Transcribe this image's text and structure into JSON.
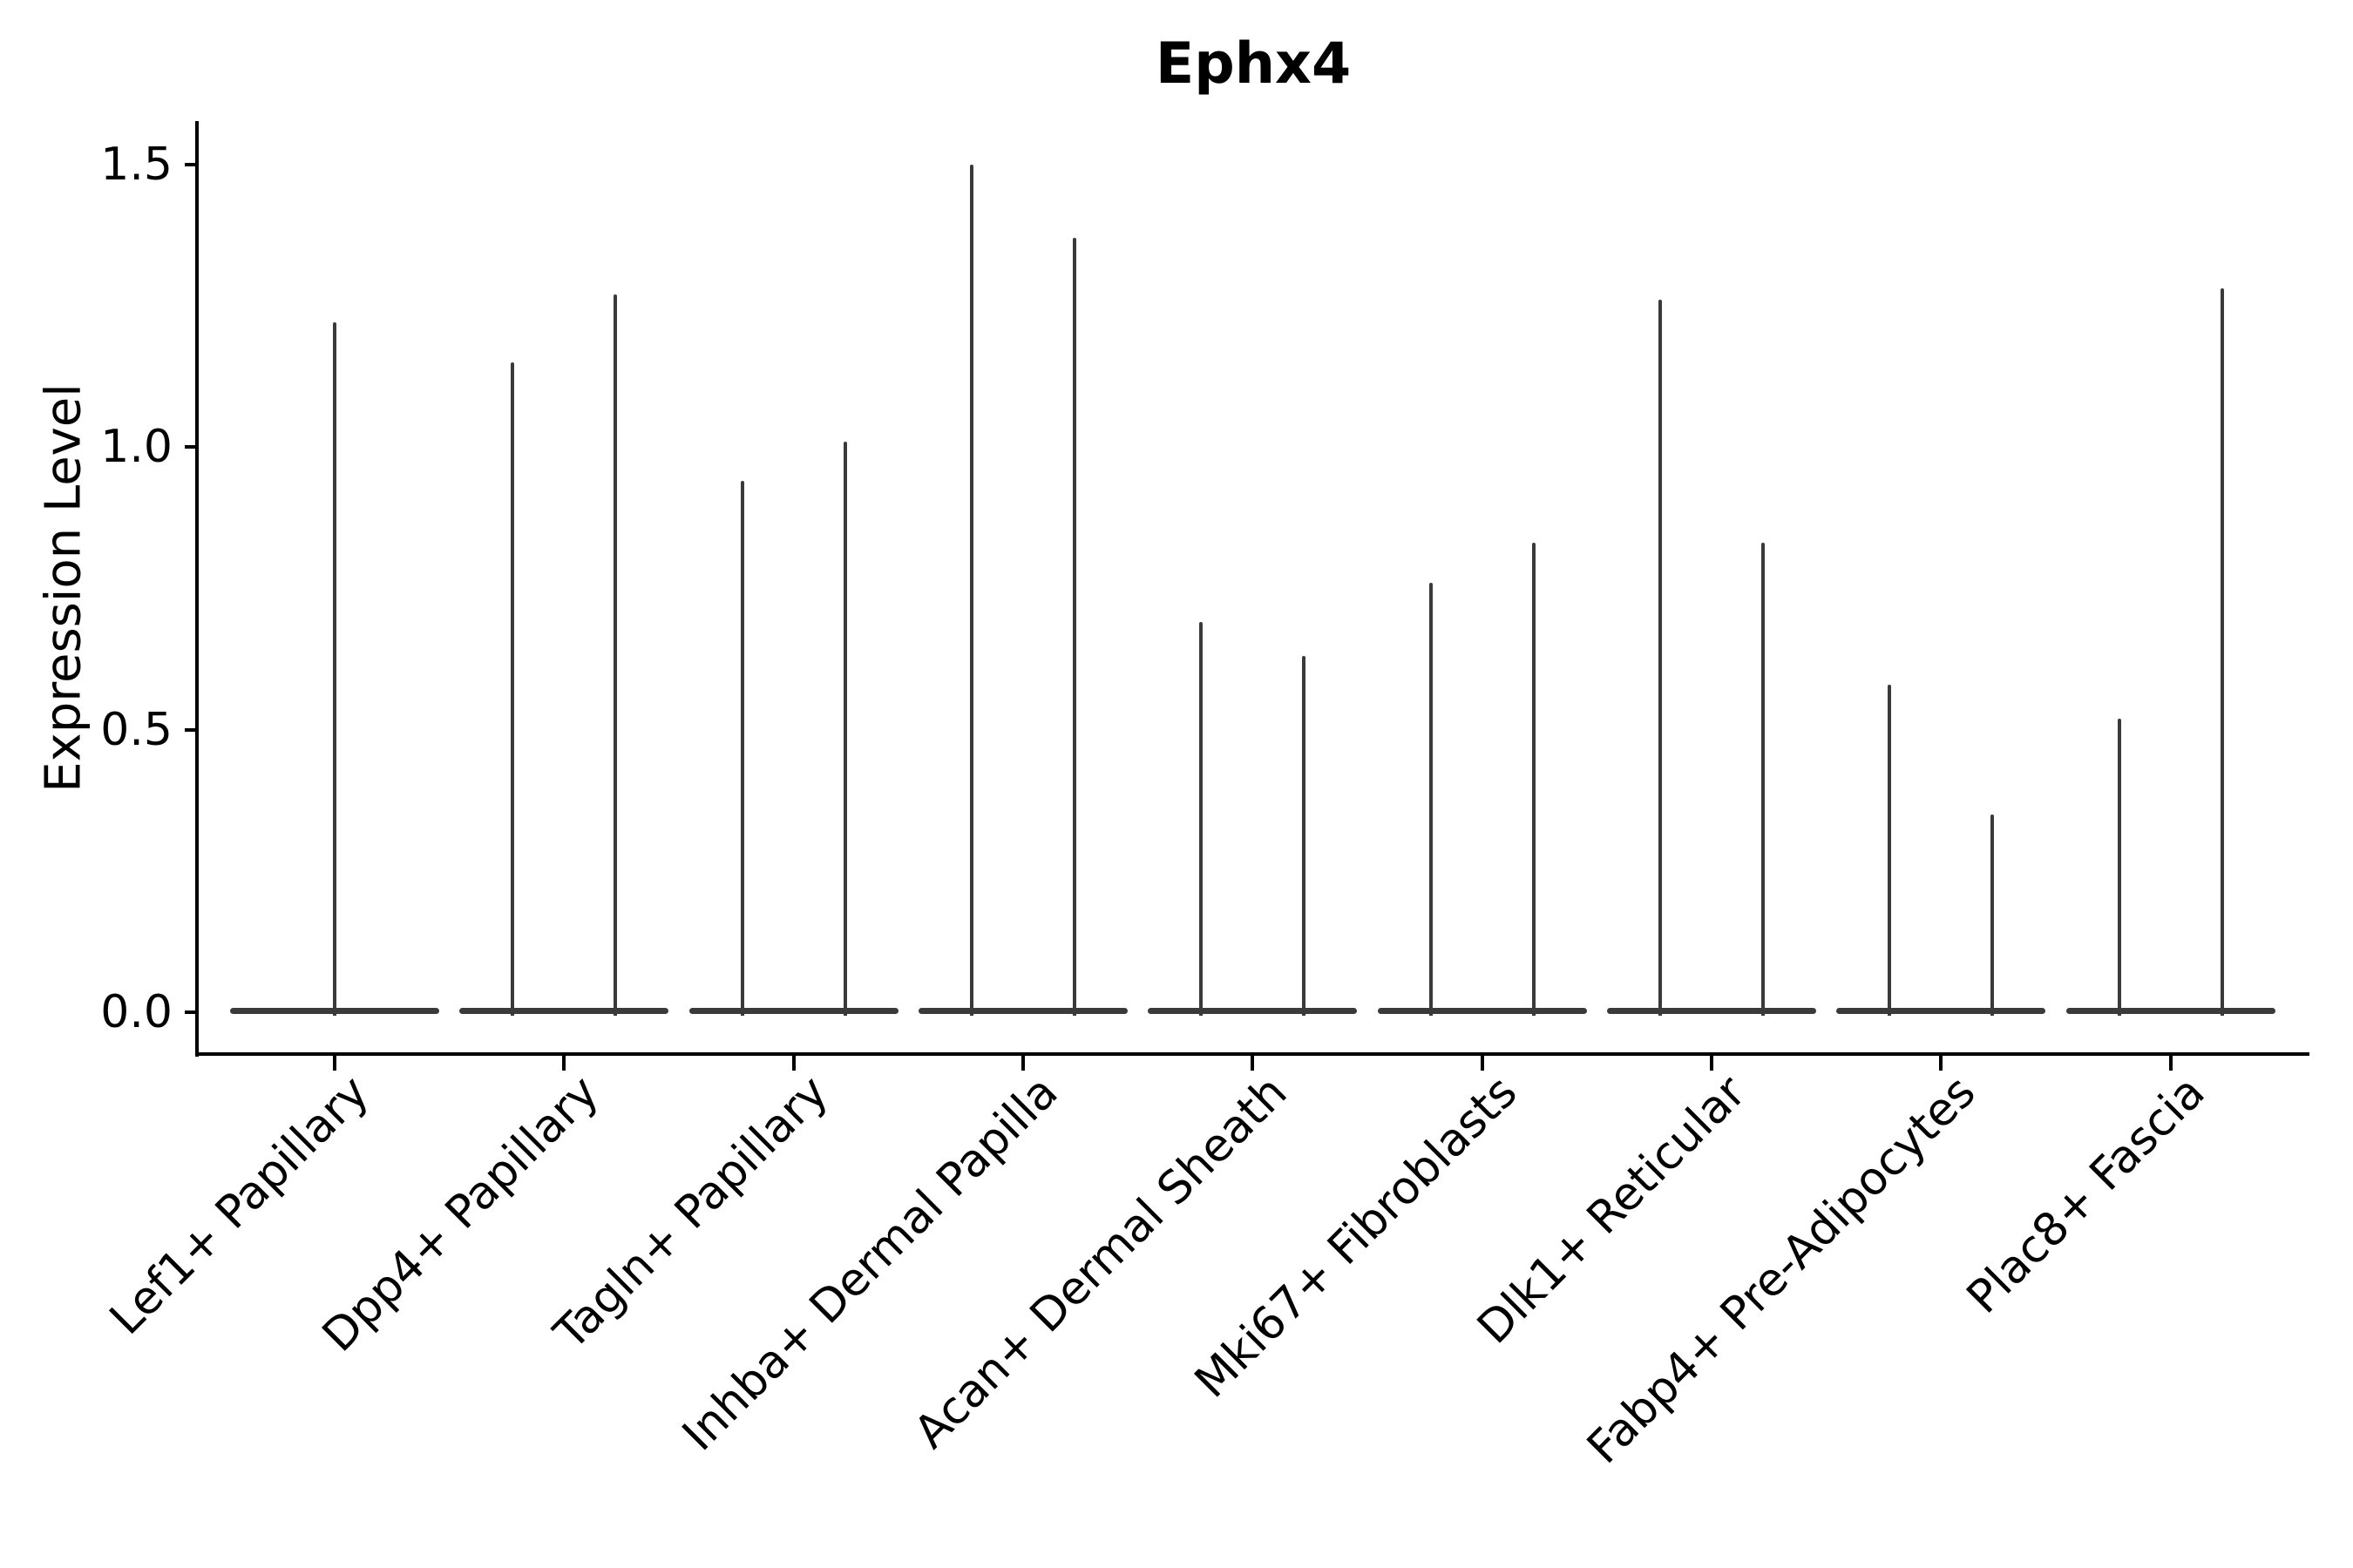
{
  "chart_data": {
    "type": "violin",
    "title": "Ephx4",
    "ylabel": "Expression Level",
    "xlabel": "",
    "ylim": [
      0,
      1.65
    ],
    "ytick_values": [
      0.0,
      0.5,
      1.0,
      1.5
    ],
    "ytick_labels": [
      "0.0",
      "0.5",
      "1.0",
      "1.5"
    ],
    "grid": false,
    "legend": "none",
    "x_tick_rotation_deg": 45,
    "categories": [
      "Lef1+ Papillary",
      "Dpp4+ Papillary",
      "Tagln+ Papillary",
      "Inhba+ Dermal Papilla",
      "Acan+ Dermal Sheath",
      "Mki67+ Fibroblasts",
      "Dlk1+ Reticular",
      "Fabp4+ Pre-Adipocytes",
      "Plac8+ Fascia"
    ],
    "series": [
      {
        "category": "Lef1+ Papillary",
        "violin_min": 0.0,
        "spike_maxima": [
          1.22
        ]
      },
      {
        "category": "Dpp4+ Papillary",
        "violin_min": 0.0,
        "spike_maxima": [
          1.15,
          1.27
        ]
      },
      {
        "category": "Tagln+ Papillary",
        "violin_min": 0.0,
        "spike_maxima": [
          0.94,
          1.01
        ]
      },
      {
        "category": "Inhba+ Dermal Papilla",
        "violin_min": 0.0,
        "spike_maxima": [
          1.5,
          1.37
        ]
      },
      {
        "category": "Acan+ Dermal Sheath",
        "violin_min": 0.0,
        "spike_maxima": [
          0.69,
          0.63
        ]
      },
      {
        "category": "Mki67+ Fibroblasts",
        "violin_min": 0.0,
        "spike_maxima": [
          0.76,
          0.83
        ]
      },
      {
        "category": "Dlk1+ Reticular",
        "violin_min": 0.0,
        "spike_maxima": [
          1.26,
          0.83
        ]
      },
      {
        "category": "Fabp4+ Pre-Adipocytes",
        "violin_min": 0.0,
        "spike_maxima": [
          0.58,
          0.35
        ]
      },
      {
        "category": "Plac8+ Fascia",
        "violin_min": 0.0,
        "spike_maxima": [
          0.52,
          1.28
        ]
      }
    ],
    "colors": {
      "violin_outline": "#3a3a3a",
      "axis": "#000000",
      "text": "#000000",
      "background": "#ffffff"
    }
  }
}
